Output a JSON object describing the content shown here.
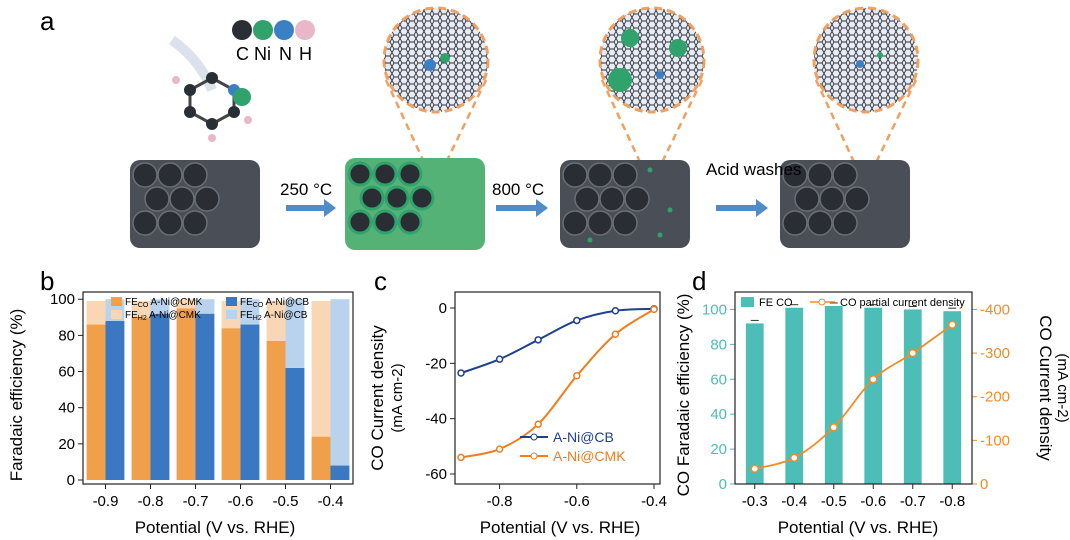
{
  "panel_a": {
    "label": "a",
    "legend": [
      {
        "symbol": "C",
        "color": "#2a2f36"
      },
      {
        "symbol": "Ni",
        "color": "#2fa36b"
      },
      {
        "symbol": "N",
        "color": "#3b7fc4"
      },
      {
        "symbol": "H",
        "color": "#e8b8c8"
      }
    ],
    "steps": [
      "250 °C",
      "800 °C",
      "Acid washes"
    ]
  },
  "chart_data": [
    {
      "panel": "b",
      "type": "bar",
      "categories": [
        "-0.9",
        "-0.8",
        "-0.7",
        "-0.6",
        "-0.5",
        "-0.4"
      ],
      "xlabel": "Potential (V vs. RHE)",
      "ylabel": "Faradaic efficiency (%)",
      "ylim": [
        0,
        100
      ],
      "yticks": [
        0,
        20,
        40,
        60,
        80,
        100
      ],
      "legend": [
        "FE",
        "A-Ni@CMK",
        "A-Ni@CB"
      ],
      "legend_subscripts": [
        "CO",
        "H2"
      ],
      "series": [
        {
          "name": "FE CO A-Ni@CMK",
          "values": [
            86,
            90,
            95,
            84,
            77,
            24
          ],
          "color": "#f0a04b"
        },
        {
          "name": "FE H2 A-Ni@CMK",
          "values": [
            13,
            9,
            5,
            15,
            22,
            75
          ],
          "color": "#fad7b4"
        },
        {
          "name": "FE CO A-Ni@CB",
          "values": [
            88,
            92,
            92,
            86,
            62,
            8
          ],
          "color": "#3a78c2"
        },
        {
          "name": "FE H2 A-Ni@CB",
          "values": [
            12,
            8,
            8,
            14,
            38,
            92
          ],
          "color": "#b9d3ef"
        }
      ],
      "colors": {
        "cmk_co": "#f0a04b",
        "cmk_h2": "#fad7b4",
        "cb_co": "#3a78c2",
        "cb_h2": "#b9d3ef"
      }
    },
    {
      "panel": "c",
      "type": "line",
      "xlabel": "Potential (V vs. RHE)",
      "ylabel": "CO Current density",
      "ylabel_unit": "(mA cm-2)",
      "xlim": [
        -0.9,
        -0.4
      ],
      "ylim": [
        -60,
        0
      ],
      "xticks": [
        "-0.8",
        "-0.6",
        "-0.4"
      ],
      "yticks": [
        "0",
        "-20",
        "-40",
        "-60"
      ],
      "series": [
        {
          "name": "A-Ni@CB",
          "color": "#1f3f8f",
          "x": [
            -0.9,
            -0.8,
            -0.7,
            -0.6,
            -0.5,
            -0.4
          ],
          "y": [
            -23.5,
            -18.5,
            -11.5,
            -4.5,
            -1.0,
            -0.3
          ]
        },
        {
          "name": "A-Ni@CMK",
          "color": "#f07d1e",
          "x": [
            -0.9,
            -0.8,
            -0.7,
            -0.6,
            -0.5,
            -0.4
          ],
          "y": [
            -54.0,
            -51.0,
            -42.0,
            -24.5,
            -9.5,
            -0.5
          ]
        }
      ]
    },
    {
      "panel": "d",
      "type": "bar",
      "categories": [
        "-0.3",
        "-0.4",
        "-0.5",
        "-0.6",
        "-0.7",
        "-0.8"
      ],
      "xlabel": "Potential (V vs. RHE)",
      "ylabel": "CO Faradaic efficiency (%)",
      "y2label": "CO Current density",
      "y2label_unit": "(mA cm-2)",
      "ylim": [
        0,
        110
      ],
      "yticks": [
        "0",
        "20",
        "40",
        "60",
        "80",
        "100"
      ],
      "y2lim": [
        0,
        -440
      ],
      "y2ticks": [
        "0",
        "-100",
        "-200",
        "-300",
        "-400"
      ],
      "series": [
        {
          "name": "FE CO",
          "type": "bar",
          "values": [
            92,
            101,
            102,
            101,
            100,
            99
          ],
          "color": "#4dbdb7"
        },
        {
          "name": "CO partial current density",
          "type": "line",
          "axis": "y2",
          "values": [
            -35,
            -60,
            -130,
            -240,
            -300,
            -365
          ],
          "color": "#f28c28"
        }
      ]
    }
  ]
}
